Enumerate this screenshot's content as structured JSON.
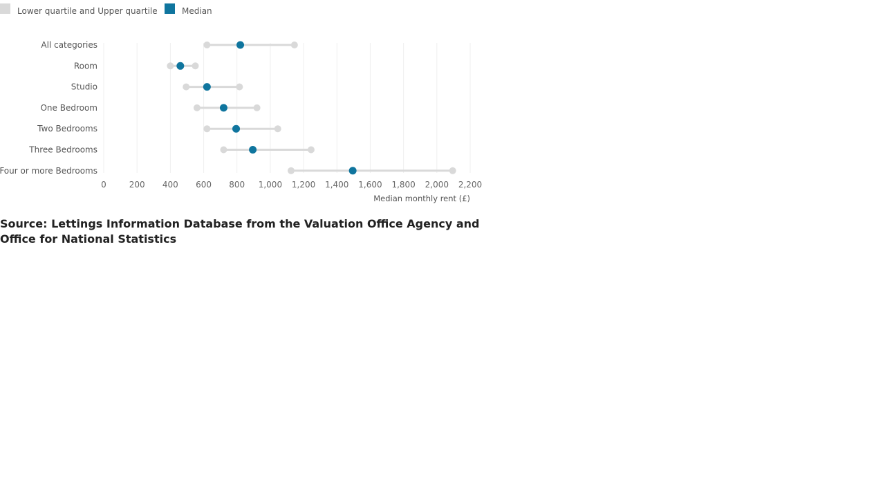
{
  "chart_data": {
    "type": "dot-range",
    "legend": [
      {
        "name": "Lower quartile and Upper quartile",
        "color": "#d9d9d9"
      },
      {
        "name": "Median",
        "color": "#0f759e"
      }
    ],
    "categories": [
      "All categories",
      "Room",
      "Studio",
      "One Bedroom",
      "Two Bedrooms",
      "Three Bedrooms",
      "Four or more Bedrooms"
    ],
    "lower_quartile": [
      620,
      400,
      495,
      560,
      620,
      720,
      1125
    ],
    "median": [
      820,
      460,
      620,
      720,
      795,
      895,
      1495
    ],
    "upper_quartile": [
      1145,
      550,
      815,
      920,
      1045,
      1245,
      2095
    ],
    "xticks": [
      0,
      200,
      400,
      600,
      800,
      1000,
      1200,
      1400,
      1600,
      1800,
      2000,
      2200
    ],
    "xtick_labels": [
      "0",
      "200",
      "400",
      "600",
      "800",
      "1,000",
      "1,200",
      "1,400",
      "1,600",
      "1,800",
      "2,000",
      "2,200"
    ],
    "xlim": [
      0,
      2200
    ],
    "xlabel": "Median monthly rent (£)",
    "grid": "vertical",
    "legend_position": "top-left"
  },
  "source": "Source: Lettings Information Database from the Valuation Office Agency and Office for National Statistics"
}
